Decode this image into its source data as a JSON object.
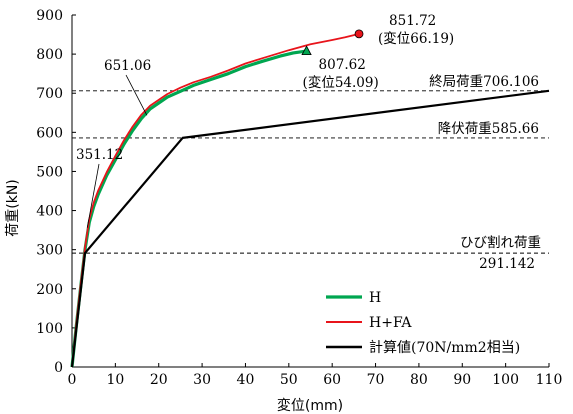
{
  "chart_data": {
    "type": "line",
    "xlabel": "変位(mm)",
    "ylabel": "荷重(kN)",
    "xlim": [
      0,
      110
    ],
    "ylim": [
      0,
      900
    ],
    "xticks": [
      "0",
      "10",
      "20",
      "30",
      "40",
      "50",
      "60",
      "70",
      "80",
      "90",
      "100",
      "110"
    ],
    "yticks": [
      "0",
      "100",
      "200",
      "300",
      "400",
      "500",
      "600",
      "700",
      "800",
      "900"
    ],
    "grid": false,
    "legend_position": "bottom-right",
    "series": [
      {
        "name": "H",
        "color": "#00a650",
        "x": [
          0,
          1.0,
          2.0,
          3.0,
          4.0,
          5.0,
          6.0,
          8.0,
          10.0,
          12.0,
          14.0,
          16.0,
          18.0,
          20.0,
          22.0,
          25.0,
          28.0,
          32.0,
          36.0,
          40.0,
          44.0,
          48.0,
          51.0,
          54.09
        ],
        "y": [
          0,
          105,
          205,
          300,
          370,
          410,
          440,
          490,
          530,
          570,
          605,
          635,
          660,
          675,
          690,
          705,
          720,
          735,
          750,
          768,
          782,
          795,
          803,
          807.62
        ],
        "end_marker": "triangle"
      },
      {
        "name": "H+FA",
        "color": "#e8141b",
        "x": [
          0,
          1.0,
          2.0,
          3.0,
          4.0,
          5.0,
          6.0,
          8.0,
          10.0,
          12.0,
          14.0,
          16.0,
          18.0,
          20.0,
          22.0,
          25.0,
          28.0,
          32.0,
          36.0,
          40.0,
          45.0,
          50.0,
          55.0,
          60.0,
          63.0,
          66.19
        ],
        "y": [
          0,
          110,
          212,
          305,
          378,
          420,
          450,
          498,
          540,
          580,
          615,
          645,
          668,
          683,
          698,
          714,
          728,
          742,
          758,
          776,
          793,
          810,
          825,
          836,
          843,
          851.72
        ],
        "end_marker": "circle"
      },
      {
        "name": "計算値(70N/mm2相当)",
        "color": "#000000",
        "x": [
          0,
          3.0,
          25.5,
          110
        ],
        "y": [
          0,
          291.142,
          585.66,
          706.106
        ]
      }
    ],
    "reference_lines": [
      {
        "y": 706.106,
        "label": "終局荷重706.106"
      },
      {
        "y": 585.66,
        "label": "降伏荷重585.66"
      },
      {
        "y": 291.142,
        "label_line1": "ひび割れ荷重",
        "label_line2": "291.142"
      }
    ],
    "annotations": {
      "h_fa_max": {
        "x": 66.19,
        "y": 851.72,
        "value": "851.72",
        "disp": "(変位66.19)"
      },
      "h_max": {
        "x": 54.09,
        "y": 807.62,
        "value": "807.62",
        "disp": "(変位54.09)"
      },
      "point_651": {
        "x": 17.5,
        "y": 651.06,
        "value": "651.06"
      },
      "point_351": {
        "x": 3.3,
        "y": 351.12,
        "value": "351.12"
      }
    }
  }
}
